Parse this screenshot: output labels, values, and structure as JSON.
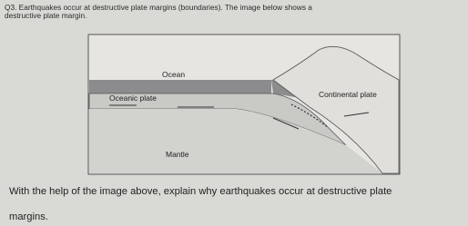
{
  "question": {
    "lines": [
      "Q3. Earthquakes occur at destructive plate margins (boundaries). The image below shows a",
      "destructive plate margin."
    ]
  },
  "diagram": {
    "labels": {
      "ocean": "Ocean",
      "oceanic_plate": "Oceanic plate",
      "continental_plate": "Continental plate",
      "mantle": "Mantle"
    }
  },
  "prompt": {
    "lines": [
      "With the help of the image above, explain why earthquakes occur at destructive plate",
      "margins."
    ]
  }
}
